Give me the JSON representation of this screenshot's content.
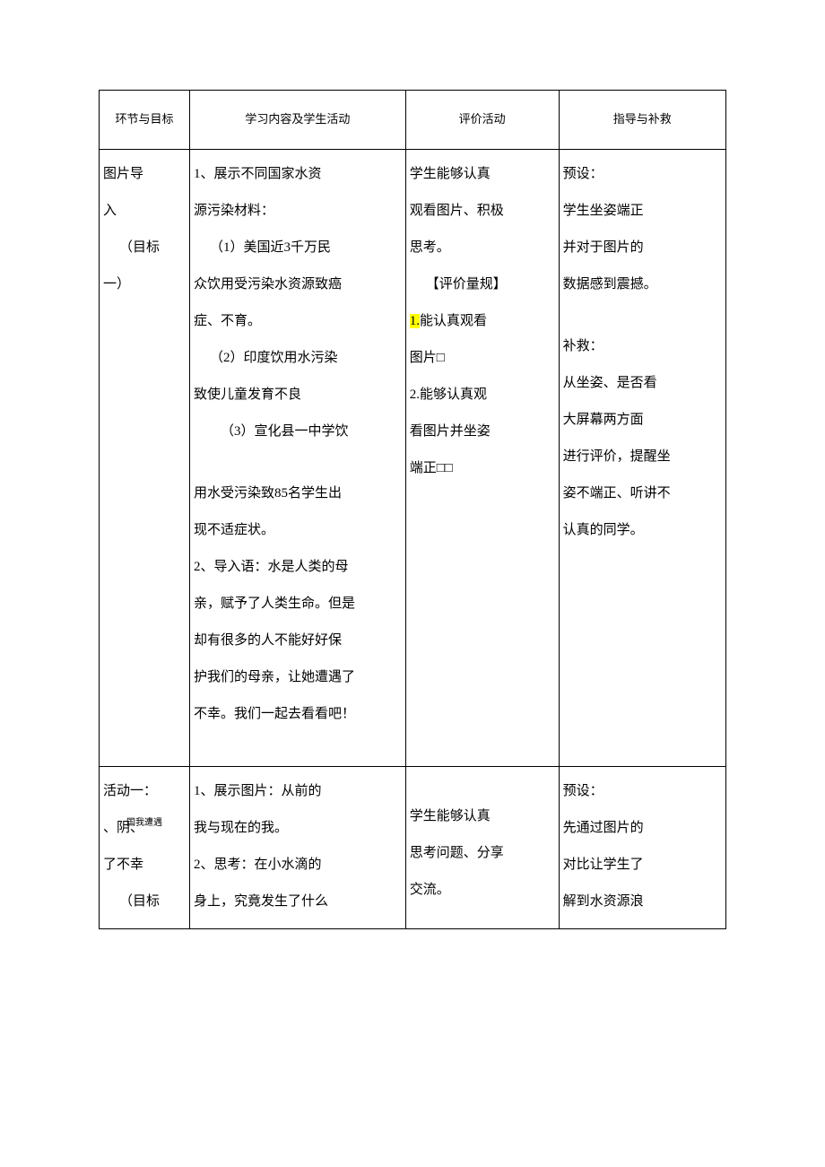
{
  "headers": {
    "col1": "环节与目标",
    "col2": "学习内容及学生活动",
    "col3": "评价活动",
    "col4": "指导与补救"
  },
  "row1": {
    "col1": {
      "line1": "图片导",
      "line2": "入",
      "line3": "（目标",
      "line4": "一）"
    },
    "col2": {
      "p1": "1、展示不同国家水资",
      "p2": "源污染材料：",
      "p3": "（1）美国近3千万民",
      "p4": "众饮用受污染水资源致癌",
      "p5": "症、不育。",
      "p6": "（2）印度饮用水污染",
      "p7": "致使儿童发育不良",
      "p8": "（3）宣化县一中学饮",
      "p9": "用水受污染致85名学生出",
      "p10": "现不适症状。",
      "p11": "2、导入语：水是人类的母",
      "p12": "亲，赋予了人类生命。但是",
      "p13": "却有很多的人不能好好保",
      "p14": "护我们的母亲，让她遭遇了",
      "p15": "不幸。我们一起去看看吧！"
    },
    "col3": {
      "p1": "学生能够认真",
      "p2": "观看图片、积极",
      "p3": "思考。",
      "p4": "【评价量规】",
      "p5h": "1.",
      "p5": "能认真观看",
      "p6": "图片□",
      "p7": "2.能够认真观",
      "p8": "看图片并坐姿",
      "p9": "端正□□"
    },
    "col4": {
      "p1": "预设：",
      "p2": "学生坐姿端正",
      "p3": "并对于图片的",
      "p4": "数据感到震撼。",
      "p5": "补救：",
      "p6": "从坐姿、是否看",
      "p7": "大屏幕两方面",
      "p8": "进行评价，提醒坐",
      "p9": "姿不端正、听讲不",
      "p10": "认真的同学。"
    }
  },
  "row2": {
    "col1": {
      "line1": "活动一：",
      "line2a": "、阴、",
      "line2b": "国我遭遇",
      "line3": "了不幸",
      "line4": "（目标"
    },
    "col2": {
      "p1": "1、展示图片：从前的",
      "p2": "我与现在的我。",
      "p3": "2、思考：在小水滴的",
      "p4": "身上，究竟发生了什么"
    },
    "col3": {
      "p1": "学生能够认真",
      "p2": "思考问题、分享",
      "p3": "交流。"
    },
    "col4": {
      "p1": "预设：",
      "p2": "先通过图片的",
      "p3": "对比让学生了",
      "p4": "解到水资源浪"
    }
  }
}
